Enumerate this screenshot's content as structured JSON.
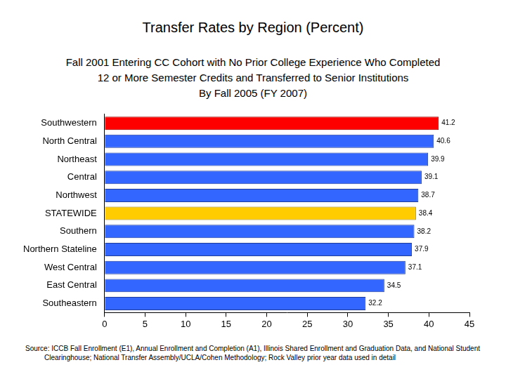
{
  "chart_data": {
    "type": "bar",
    "orientation": "horizontal",
    "title": "Transfer Rates by Region (Percent)",
    "subtitle": [
      "Fall 2001 Entering CC Cohort with No Prior College Experience Who Completed",
      "12 or More Semester Credits and Transferred to Senior Institutions",
      "By Fall 2005 (FY 2007)"
    ],
    "source": "Source: ICCB Fall Enrollment (E1), Annual Enrollment and Completion (A1), Illinois Shared Enrollment and Graduation Data, and National Student Clearinghouse; National Transfer Assembly/UCLA/Cohen Methodology; Rock Valley prior year data used in detail",
    "categories": [
      "Southwestern",
      "North Central",
      "Northeast",
      "Central",
      "Northwest",
      "STATEWIDE",
      "Southern",
      "Northern Stateline",
      "West Central",
      "East Central",
      "Southeastern"
    ],
    "values": [
      41.2,
      40.6,
      39.9,
      39.1,
      38.7,
      38.4,
      38.2,
      37.9,
      37.1,
      34.5,
      32.2
    ],
    "colors": [
      "#ff0000",
      "#3366ff",
      "#3366ff",
      "#3366ff",
      "#3366ff",
      "#ffcc00",
      "#3366ff",
      "#3366ff",
      "#3366ff",
      "#3366ff",
      "#3366ff"
    ],
    "xlim": [
      0,
      45
    ],
    "xticks": [
      0,
      5,
      10,
      15,
      20,
      25,
      30,
      35,
      40,
      45
    ],
    "grid": false,
    "data_labels": true
  }
}
